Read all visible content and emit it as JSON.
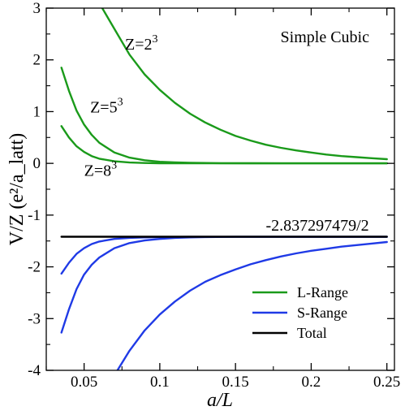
{
  "chart_data": {
    "type": "line",
    "title": "",
    "panel_label": "Simple Cubic",
    "xlabel": "a/L",
    "ylabel": "V/Z (e²/a_latt)",
    "xlim": [
      0.025,
      0.255
    ],
    "ylim": [
      -4,
      3
    ],
    "x_ticks": [
      {
        "value": 0.05,
        "label": "0.05"
      },
      {
        "value": 0.1,
        "label": "0.1"
      },
      {
        "value": 0.15,
        "label": "0.15"
      },
      {
        "value": 0.2,
        "label": "0.2"
      },
      {
        "value": 0.25,
        "label": "0.25"
      }
    ],
    "y_ticks": [
      {
        "value": 3,
        "label": "3"
      },
      {
        "value": 2,
        "label": "2"
      },
      {
        "value": 1,
        "label": "1"
      },
      {
        "value": 0,
        "label": "0"
      },
      {
        "value": -1,
        "label": "-1"
      },
      {
        "value": -2,
        "label": "-2"
      },
      {
        "value": -3,
        "label": "-3"
      },
      {
        "value": -4,
        "label": "-4"
      }
    ],
    "grid": false,
    "legend_position": "bottom-right",
    "legend": [
      {
        "label": "L-Range",
        "color": "#1a9a1a"
      },
      {
        "label": "S-Range",
        "color": "#1f3ae6"
      },
      {
        "label": "Total",
        "color": "#000000"
      }
    ],
    "annotations": [
      {
        "base": "Z=2",
        "exp": "3",
        "x": 0.077,
        "y": 2.2
      },
      {
        "base": "Z=5",
        "exp": "3",
        "x": 0.054,
        "y": 0.98
      },
      {
        "base": "Z=8",
        "exp": "3",
        "x": 0.05,
        "y": -0.24
      },
      {
        "base": "-2.837297479/2",
        "exp": "",
        "x": 0.17,
        "y": -1.3
      }
    ],
    "total_value": -1.4186,
    "series": [
      {
        "group": "L-Range",
        "color": "#1a9a1a",
        "x": [
          0.062,
          0.07,
          0.08,
          0.09,
          0.1,
          0.11,
          0.12,
          0.13,
          0.14,
          0.15,
          0.16,
          0.17,
          0.18,
          0.19,
          0.2,
          0.21,
          0.22,
          0.23,
          0.24,
          0.25
        ],
        "y": [
          3.0,
          2.6,
          2.1,
          1.72,
          1.42,
          1.17,
          0.96,
          0.79,
          0.65,
          0.53,
          0.44,
          0.36,
          0.3,
          0.25,
          0.21,
          0.17,
          0.14,
          0.12,
          0.1,
          0.08
        ]
      },
      {
        "group": "L-Range",
        "color": "#1a9a1a",
        "x": [
          0.035,
          0.04,
          0.045,
          0.05,
          0.055,
          0.06,
          0.07,
          0.08,
          0.09,
          0.1,
          0.11,
          0.12,
          0.14,
          0.16,
          0.18,
          0.2,
          0.22,
          0.25
        ],
        "y": [
          1.85,
          1.4,
          1.02,
          0.75,
          0.55,
          0.4,
          0.21,
          0.11,
          0.06,
          0.03,
          0.018,
          0.01,
          0.004,
          0.002,
          0.001,
          0.0,
          0.0,
          0.0
        ]
      },
      {
        "group": "L-Range",
        "color": "#1a9a1a",
        "x": [
          0.035,
          0.04,
          0.045,
          0.05,
          0.055,
          0.06,
          0.07,
          0.08,
          0.09,
          0.1,
          0.12,
          0.15,
          0.2,
          0.25
        ],
        "y": [
          0.72,
          0.5,
          0.33,
          0.22,
          0.14,
          0.09,
          0.04,
          0.017,
          0.007,
          0.003,
          0.0,
          0.0,
          0.0,
          0.0
        ]
      },
      {
        "group": "S-Range",
        "color": "#1f3ae6",
        "x": [
          0.035,
          0.04,
          0.045,
          0.05,
          0.055,
          0.06,
          0.07,
          0.08,
          0.09,
          0.1,
          0.12,
          0.15,
          0.2,
          0.25
        ],
        "y": [
          -2.13,
          -1.92,
          -1.75,
          -1.64,
          -1.56,
          -1.51,
          -1.46,
          -1.44,
          -1.43,
          -1.425,
          -1.42,
          -1.419,
          -1.419,
          -1.419
        ]
      },
      {
        "group": "S-Range",
        "color": "#1f3ae6",
        "x": [
          0.035,
          0.04,
          0.045,
          0.05,
          0.055,
          0.06,
          0.07,
          0.08,
          0.09,
          0.1,
          0.11,
          0.12,
          0.13,
          0.15,
          0.18,
          0.2,
          0.25
        ],
        "y": [
          -3.27,
          -2.82,
          -2.43,
          -2.15,
          -1.96,
          -1.82,
          -1.64,
          -1.54,
          -1.49,
          -1.46,
          -1.44,
          -1.43,
          -1.425,
          -1.42,
          -1.419,
          -1.419,
          -1.419
        ]
      },
      {
        "group": "S-Range",
        "color": "#1f3ae6",
        "x": [
          0.072,
          0.08,
          0.09,
          0.1,
          0.11,
          0.12,
          0.13,
          0.14,
          0.15,
          0.16,
          0.17,
          0.18,
          0.19,
          0.2,
          0.21,
          0.22,
          0.23,
          0.24,
          0.25
        ],
        "y": [
          -4.0,
          -3.62,
          -3.23,
          -2.92,
          -2.67,
          -2.46,
          -2.29,
          -2.16,
          -2.05,
          -1.95,
          -1.87,
          -1.8,
          -1.74,
          -1.69,
          -1.65,
          -1.61,
          -1.58,
          -1.55,
          -1.52
        ]
      },
      {
        "group": "Total",
        "color": "#000000",
        "x": [
          0.035,
          0.25
        ],
        "y": [
          -1.4186,
          -1.4186
        ]
      }
    ]
  }
}
